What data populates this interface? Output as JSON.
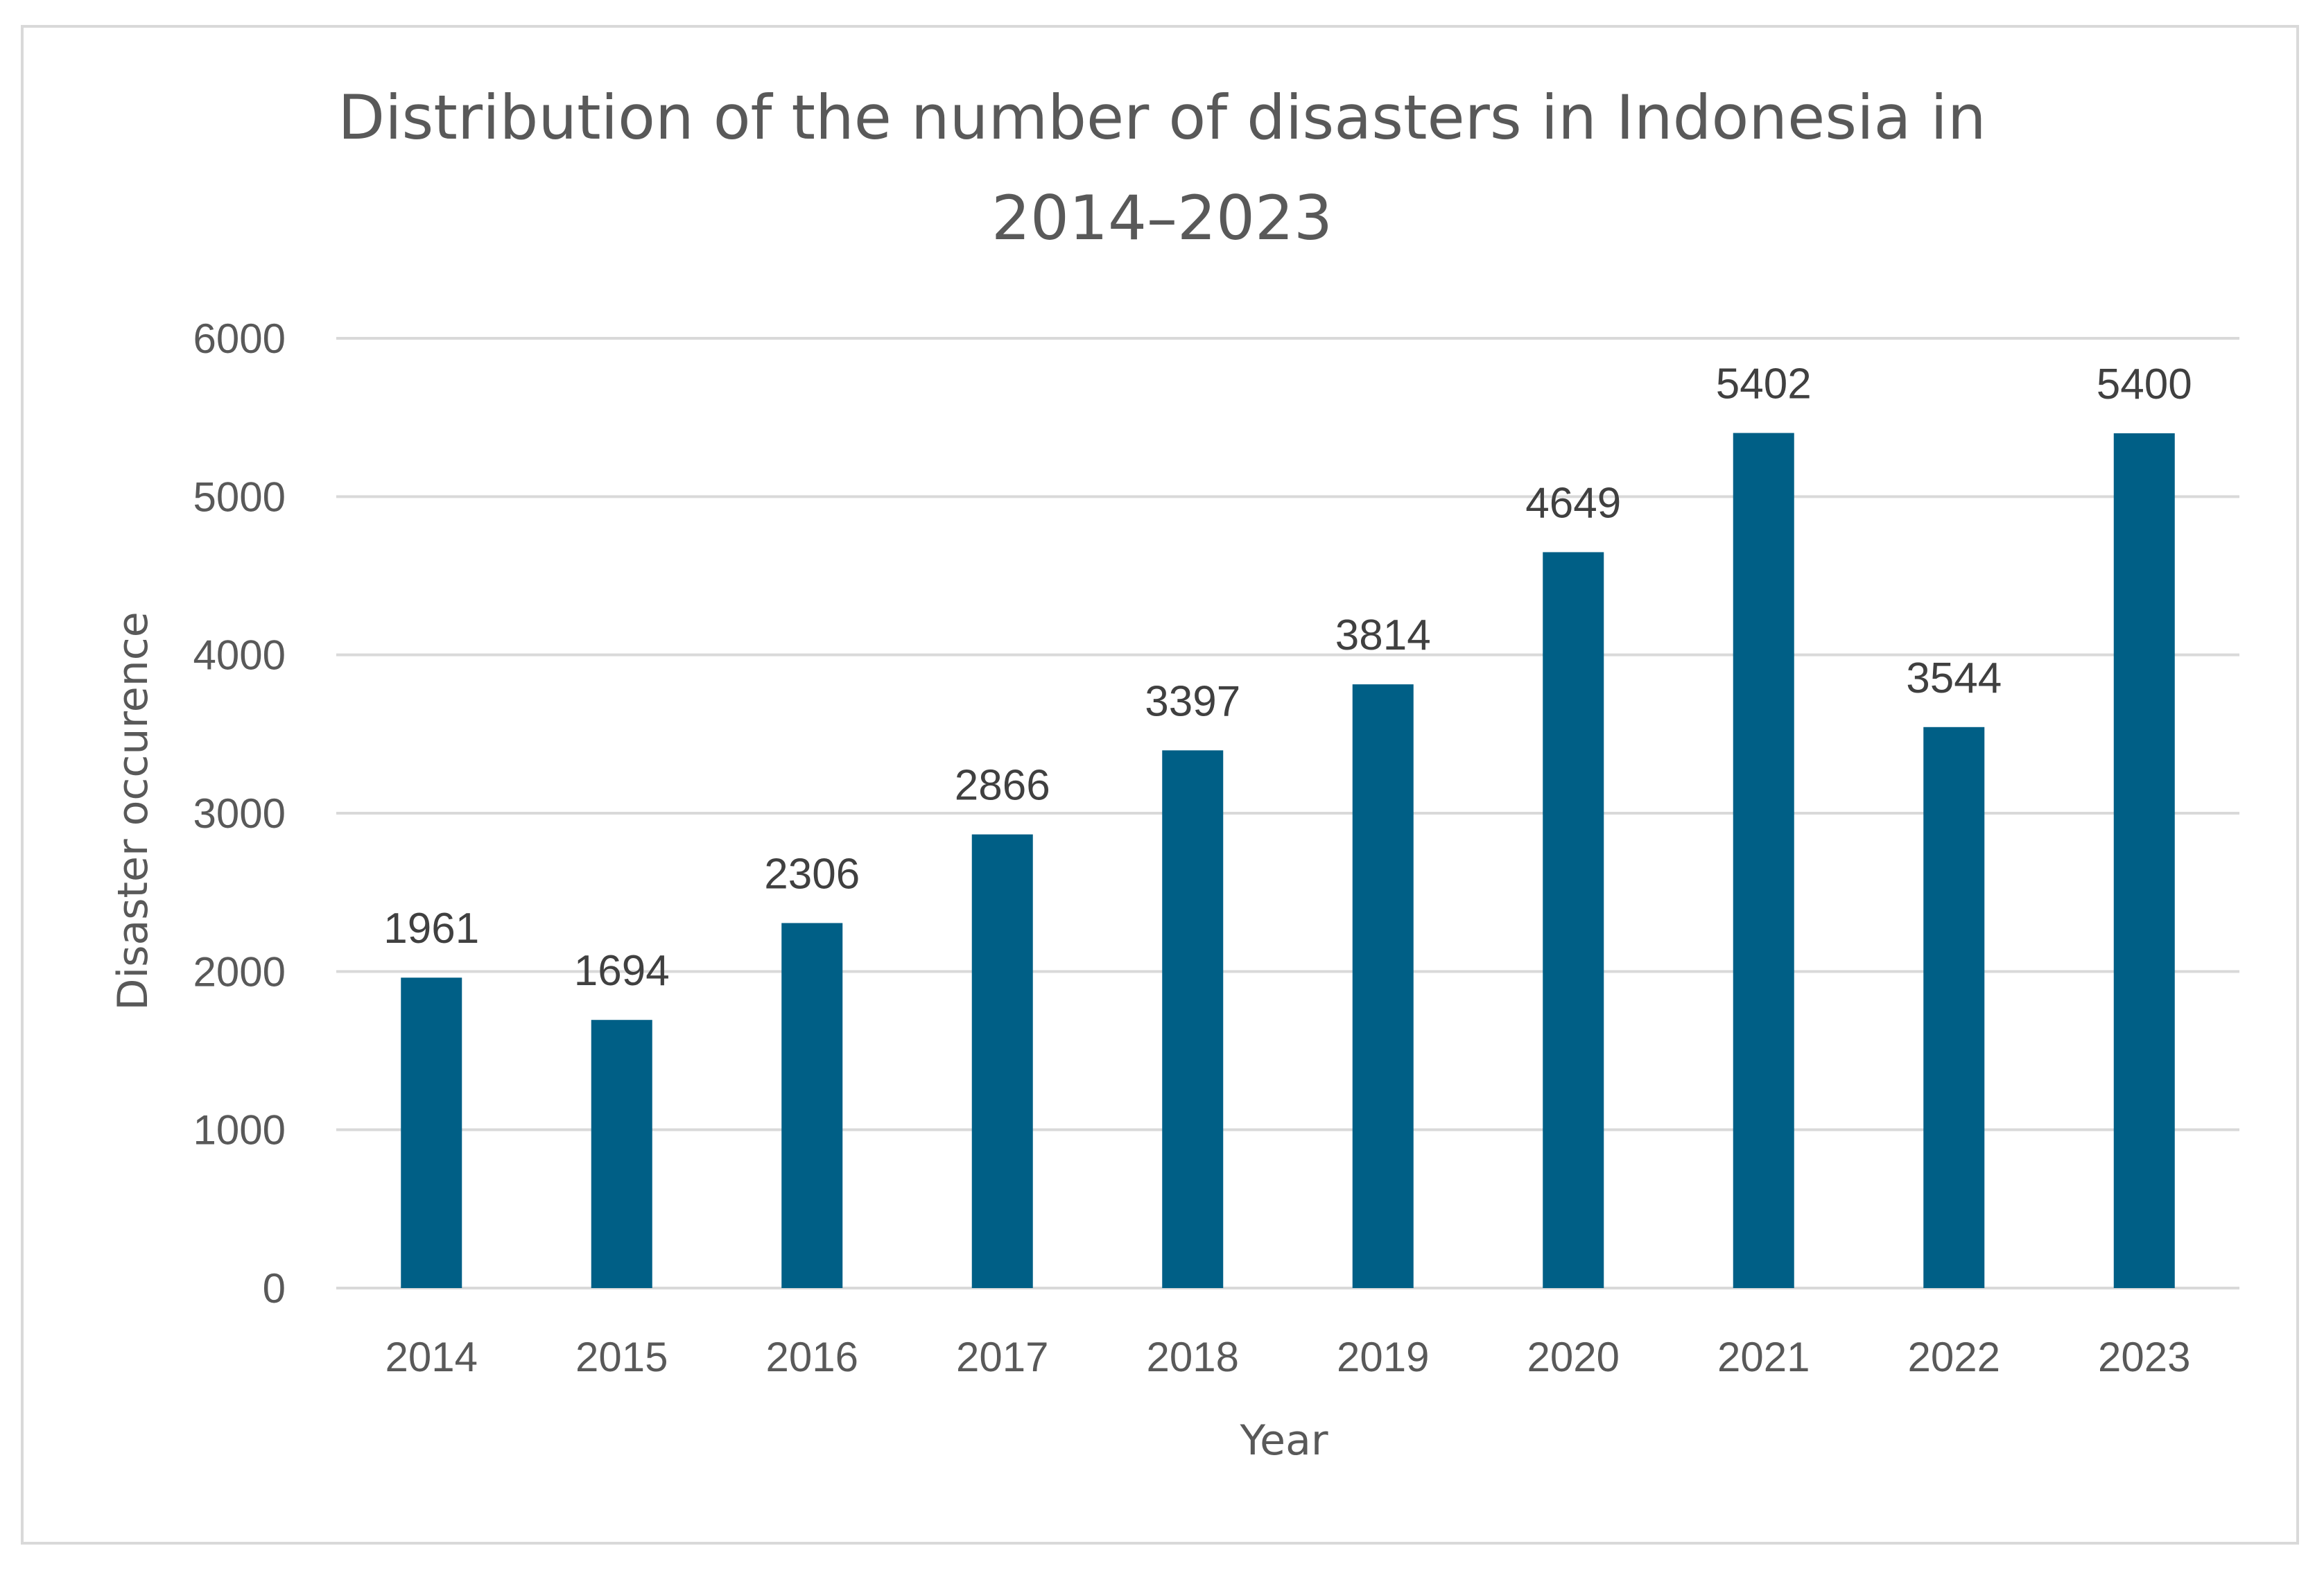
{
  "chart_data": {
    "type": "bar",
    "title_lines": [
      "Distribution of the number of disasters in Indonesia in",
      "2014–2023"
    ],
    "xlabel": "Year",
    "ylabel": "Disaster occurence",
    "categories": [
      "2014",
      "2015",
      "2016",
      "2017",
      "2018",
      "2019",
      "2020",
      "2021",
      "2022",
      "2023"
    ],
    "values": [
      1961,
      1694,
      2306,
      2866,
      3397,
      3814,
      4649,
      5402,
      3544,
      5400
    ],
    "data_labels": [
      "1961",
      "1694",
      "2306",
      "2866",
      "3397",
      "3814",
      "4649",
      "5402",
      "3544",
      "5400"
    ],
    "ylim": [
      0,
      6000
    ],
    "yticks": [
      "0",
      "1000",
      "2000",
      "3000",
      "4000",
      "5000",
      "6000"
    ],
    "ytick_values": [
      0,
      1000,
      2000,
      3000,
      4000,
      5000,
      6000
    ],
    "grid": true,
    "legend": "none",
    "bar_color": "#005f86",
    "grid_color": "#d9d9d9"
  }
}
